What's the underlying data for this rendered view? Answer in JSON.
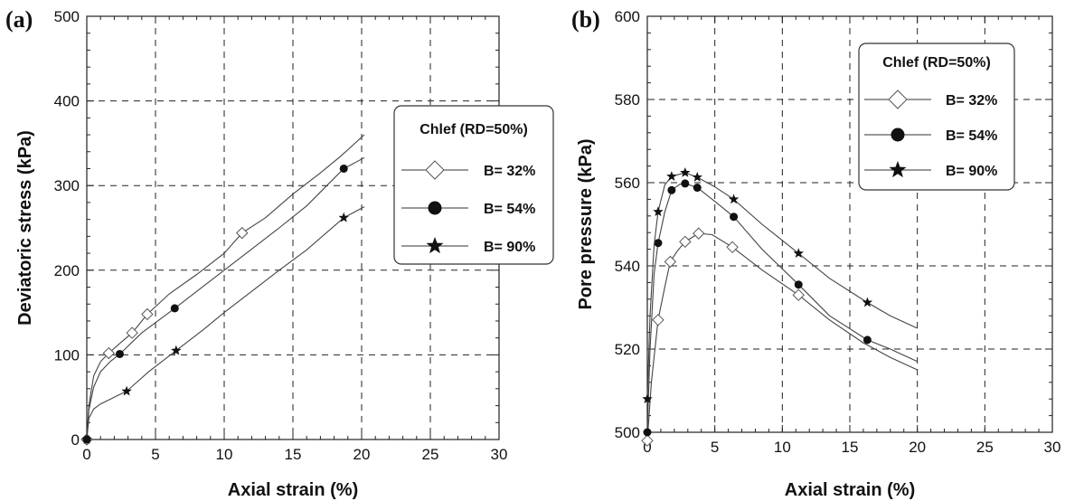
{
  "chart_data": [
    {
      "type": "line",
      "panel_label": "(a)",
      "xlabel": "Axial strain (%)",
      "ylabel": "Deviatoric stress (kPa)",
      "xlim": [
        0,
        30
      ],
      "ylim": [
        0,
        500
      ],
      "xticks": [
        "0",
        "5",
        "10",
        "15",
        "20",
        "25",
        "30"
      ],
      "yticks": [
        "0",
        "100",
        "200",
        "300",
        "400",
        "500"
      ],
      "grid": true,
      "legend_title": "Chlef (RD=50%)",
      "legend_position": "right",
      "series": [
        {
          "name": "B= 32%",
          "marker": "diamond",
          "curve": [
            [
              0,
              0
            ],
            [
              0.15,
              40
            ],
            [
              0.5,
              75
            ],
            [
              1,
              92
            ],
            [
              1.6,
              102
            ],
            [
              2.5,
              115
            ],
            [
              3.3,
              126
            ],
            [
              4.4,
              148
            ],
            [
              6,
              172
            ],
            [
              8,
              195
            ],
            [
              10,
              220
            ],
            [
              11.3,
              244
            ],
            [
              13,
              262
            ],
            [
              15,
              290
            ],
            [
              17,
              315
            ],
            [
              18.5,
              335
            ],
            [
              20.2,
              360
            ]
          ],
          "markers": [
            [
              0,
              0
            ],
            [
              1.6,
              102
            ],
            [
              3.3,
              126
            ],
            [
              4.4,
              148
            ],
            [
              11.3,
              244
            ]
          ]
        },
        {
          "name": "B= 54%",
          "marker": "circle",
          "curve": [
            [
              0,
              0
            ],
            [
              0.15,
              35
            ],
            [
              0.5,
              62
            ],
            [
              1,
              80
            ],
            [
              1.7,
              92
            ],
            [
              2.4,
              101
            ],
            [
              4,
              126
            ],
            [
              6.4,
              155
            ],
            [
              8,
              175
            ],
            [
              10,
              200
            ],
            [
              12,
              225
            ],
            [
              14,
              250
            ],
            [
              16,
              276
            ],
            [
              18.7,
              320
            ],
            [
              20.2,
              333
            ]
          ],
          "markers": [
            [
              0,
              0
            ],
            [
              2.4,
              101
            ],
            [
              6.4,
              155
            ],
            [
              18.7,
              320
            ]
          ]
        },
        {
          "name": "B= 90%",
          "marker": "star",
          "curve": [
            [
              0,
              0
            ],
            [
              0.15,
              25
            ],
            [
              0.5,
              36
            ],
            [
              1,
              42
            ],
            [
              2,
              50
            ],
            [
              2.9,
              57
            ],
            [
              4.5,
              80
            ],
            [
              6.5,
              105
            ],
            [
              8.5,
              130
            ],
            [
              10,
              150
            ],
            [
              12,
              175
            ],
            [
              14,
              200
            ],
            [
              16,
              224
            ],
            [
              18.7,
              262
            ],
            [
              20.2,
              275
            ]
          ],
          "markers": [
            [
              0,
              0
            ],
            [
              2.9,
              57
            ],
            [
              6.5,
              105
            ],
            [
              18.7,
              262
            ]
          ]
        }
      ]
    },
    {
      "type": "line",
      "panel_label": "(b)",
      "xlabel": "Axial strain (%)",
      "ylabel": "Pore pressure (kPa)",
      "xlim": [
        0,
        30
      ],
      "ylim": [
        500,
        600
      ],
      "xticks": [
        "0",
        "5",
        "10",
        "15",
        "20",
        "25",
        "30"
      ],
      "yticks": [
        "500",
        "520",
        "540",
        "560",
        "580",
        "600"
      ],
      "grid": true,
      "legend_title": "Chlef (RD=50%)",
      "legend_position": "top-right",
      "series": [
        {
          "name": "B= 32%",
          "marker": "diamond",
          "curve": [
            [
              0,
              498
            ],
            [
              0.3,
              512
            ],
            [
              0.8,
              527
            ],
            [
              1.3,
              535
            ],
            [
              1.7,
              541
            ],
            [
              2.2,
              543.5
            ],
            [
              2.8,
              545.8
            ],
            [
              3.8,
              547.8
            ],
            [
              4.8,
              547.5
            ],
            [
              6.3,
              544.5
            ],
            [
              8.5,
              539
            ],
            [
              11.2,
              533
            ],
            [
              13.5,
              527
            ],
            [
              16,
              521.5
            ],
            [
              18,
              518
            ],
            [
              20,
              515
            ]
          ],
          "markers": [
            [
              0,
              498
            ],
            [
              0.8,
              527
            ],
            [
              1.7,
              541
            ],
            [
              2.8,
              545.8
            ],
            [
              3.8,
              547.8
            ],
            [
              6.3,
              544.5
            ],
            [
              11.2,
              533
            ]
          ]
        },
        {
          "name": "B= 54%",
          "marker": "circle",
          "curve": [
            [
              0,
              500
            ],
            [
              0.2,
              520
            ],
            [
              0.5,
              538
            ],
            [
              0.8,
              545.5
            ],
            [
              1.3,
              553
            ],
            [
              1.8,
              558.2
            ],
            [
              2.4,
              559.6
            ],
            [
              2.8,
              559.8
            ],
            [
              3.7,
              558.8
            ],
            [
              5,
              555.5
            ],
            [
              6.4,
              551.8
            ],
            [
              8.5,
              544
            ],
            [
              11.2,
              535.5
            ],
            [
              13.5,
              528
            ],
            [
              16.3,
              522.2
            ],
            [
              18,
              520
            ],
            [
              20,
              517
            ]
          ],
          "markers": [
            [
              0,
              500
            ],
            [
              0.8,
              545.5
            ],
            [
              1.8,
              558.2
            ],
            [
              2.8,
              559.8
            ],
            [
              3.7,
              558.8
            ],
            [
              6.4,
              551.8
            ],
            [
              11.2,
              535.5
            ],
            [
              16.3,
              522.2
            ]
          ]
        },
        {
          "name": "B= 90%",
          "marker": "star",
          "curve": [
            [
              0,
              508
            ],
            [
              0.2,
              528
            ],
            [
              0.5,
              545
            ],
            [
              0.8,
              553
            ],
            [
              1.3,
              559.5
            ],
            [
              1.8,
              561.5
            ],
            [
              2.8,
              562.4
            ],
            [
              3.7,
              561.3
            ],
            [
              5,
              559
            ],
            [
              6.4,
              556
            ],
            [
              8.5,
              550
            ],
            [
              11.2,
              543
            ],
            [
              13.5,
              537
            ],
            [
              16.3,
              531.2
            ],
            [
              18,
              528
            ],
            [
              20,
              525
            ]
          ],
          "markers": [
            [
              0,
              508
            ],
            [
              0.8,
              553
            ],
            [
              1.8,
              561.5
            ],
            [
              2.8,
              562.4
            ],
            [
              3.7,
              561.3
            ],
            [
              6.4,
              556
            ],
            [
              11.2,
              543
            ],
            [
              16.3,
              531.2
            ]
          ]
        }
      ]
    }
  ]
}
